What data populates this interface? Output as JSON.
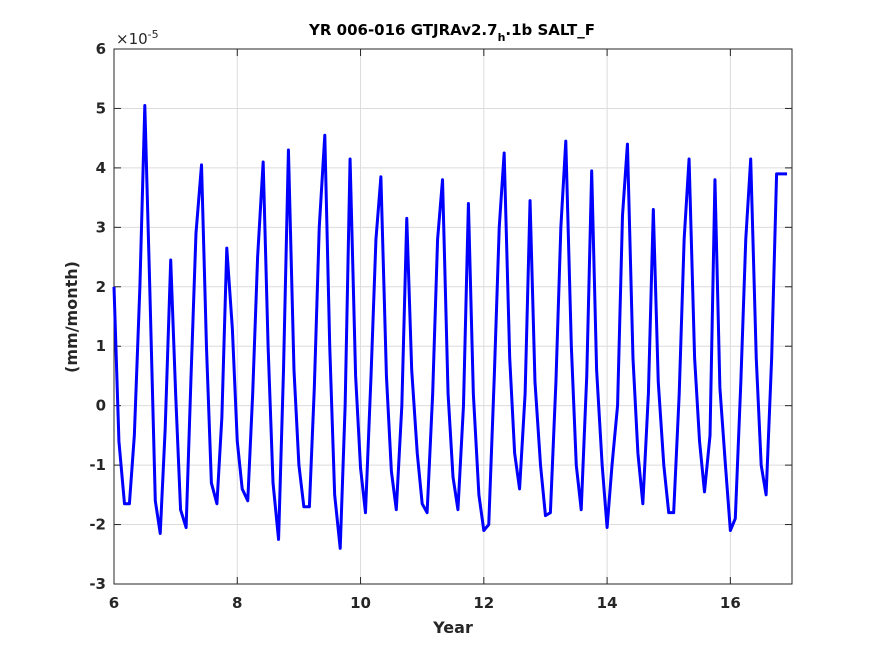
{
  "chart_data": {
    "type": "line",
    "title": "YR 006-016 GTJRAv2.7",
    "title_subscript": "h",
    "title_suffix": ".1b SALT_F",
    "xlabel": "Year",
    "ylabel": "(mm/month)",
    "y_exponent_base": "×10",
    "y_exponent_power": "-5",
    "xlim": [
      6,
      17
    ],
    "ylim": [
      -3,
      6
    ],
    "xticks": [
      6,
      8,
      10,
      12,
      14,
      16
    ],
    "yticks": [
      -3,
      -2,
      -1,
      0,
      1,
      2,
      3,
      4,
      5,
      6
    ],
    "grid": true,
    "line_color": "#0000ff",
    "series": [
      {
        "x": [
          6.0,
          6.08,
          6.17,
          6.25,
          6.33,
          6.42,
          6.5,
          6.58,
          6.67,
          6.75,
          6.83,
          6.92,
          7.0,
          7.08,
          7.17,
          7.25,
          7.33,
          7.42,
          7.5,
          7.58,
          7.67,
          7.75,
          7.83,
          7.92,
          8.0,
          8.08,
          8.17,
          8.25,
          8.33,
          8.42,
          8.5,
          8.58,
          8.67,
          8.75,
          8.83,
          8.92,
          9.0,
          9.08,
          9.17,
          9.25,
          9.33,
          9.42,
          9.5,
          9.58,
          9.67,
          9.75,
          9.83,
          9.92,
          10.0,
          10.08,
          10.17,
          10.25,
          10.33,
          10.42,
          10.5,
          10.58,
          10.67,
          10.75,
          10.83,
          10.92,
          11.0,
          11.08,
          11.17,
          11.25,
          11.33,
          11.42,
          11.5,
          11.58,
          11.67,
          11.75,
          11.83,
          11.92,
          12.0,
          12.08,
          12.17,
          12.25,
          12.33,
          12.42,
          12.5,
          12.58,
          12.67,
          12.75,
          12.83,
          12.92,
          13.0,
          13.08,
          13.17,
          13.25,
          13.33,
          13.42,
          13.5,
          13.58,
          13.67,
          13.75,
          13.83,
          13.92,
          14.0,
          14.08,
          14.17,
          14.25,
          14.33,
          14.42,
          14.5,
          14.58,
          14.67,
          14.75,
          14.83,
          14.92,
          15.0,
          15.08,
          15.17,
          15.25,
          15.33,
          15.42,
          15.5,
          15.58,
          15.67,
          15.75,
          15.83,
          15.92,
          16.0,
          16.08,
          16.17,
          16.25,
          16.33,
          16.42,
          16.5,
          16.58,
          16.67,
          16.75,
          16.83,
          16.92
        ],
        "y": [
          2.0,
          -0.6,
          -1.65,
          -1.65,
          -0.5,
          2.0,
          5.05,
          2.0,
          -1.6,
          -2.15,
          -0.4,
          2.45,
          0.2,
          -1.75,
          -2.05,
          0.5,
          2.9,
          4.05,
          1.0,
          -1.3,
          -1.65,
          -0.2,
          2.65,
          1.3,
          -0.6,
          -1.4,
          -1.6,
          0.2,
          2.5,
          4.1,
          1.0,
          -1.3,
          -2.25,
          0.6,
          4.3,
          0.6,
          -1.0,
          -1.7,
          -1.7,
          0.3,
          3.0,
          4.55,
          1.0,
          -1.5,
          -2.4,
          0.0,
          4.15,
          0.5,
          -1.05,
          -1.8,
          0.5,
          2.8,
          3.85,
          0.5,
          -1.1,
          -1.75,
          0.0,
          3.15,
          0.6,
          -0.8,
          -1.65,
          -1.8,
          0.2,
          2.8,
          3.8,
          0.2,
          -1.2,
          -1.75,
          0.0,
          3.4,
          0.2,
          -1.5,
          -2.1,
          -2.0,
          0.5,
          3.0,
          4.25,
          0.8,
          -0.8,
          -1.4,
          0.2,
          3.45,
          0.4,
          -1.0,
          -1.85,
          -1.8,
          0.4,
          3.0,
          4.45,
          1.0,
          -1.0,
          -1.75,
          0.5,
          3.95,
          0.6,
          -1.0,
          -2.05,
          -1.0,
          0.0,
          3.2,
          4.4,
          0.8,
          -0.8,
          -1.65,
          0.2,
          3.3,
          0.4,
          -1.0,
          -1.8,
          -1.8,
          0.2,
          2.8,
          4.15,
          0.8,
          -0.6,
          -1.45,
          -0.5,
          3.8,
          0.3,
          -1.0,
          -2.1,
          -1.9,
          0.4,
          2.8,
          4.15,
          0.8,
          -1.0,
          -1.5,
          0.8,
          3.9,
          3.9,
          3.9
        ]
      }
    ]
  }
}
